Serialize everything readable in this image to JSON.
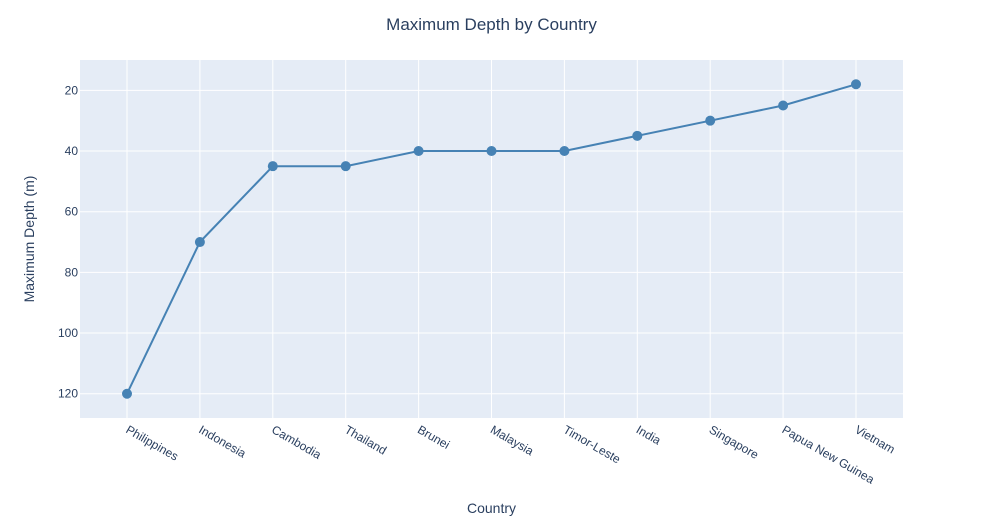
{
  "chart_data": {
    "type": "line",
    "title": "Maximum Depth by Country",
    "xlabel": "Country",
    "ylabel": "Maximum Depth (m)",
    "categories": [
      "Philippines",
      "Indonesia",
      "Cambodia",
      "Thailand",
      "Brunei",
      "Malaysia",
      "Timor-Leste",
      "India",
      "Singapore",
      "Papua New Guinea",
      "Vietnam"
    ],
    "values": [
      120,
      70,
      45,
      45,
      40,
      40,
      40,
      35,
      30,
      25,
      18
    ],
    "y_reversed": true,
    "ylim": [
      128,
      10
    ],
    "yticks": [
      20,
      40,
      60,
      80,
      100,
      120
    ],
    "grid": true,
    "legend": "none",
    "colors": {
      "line": "#4682b4",
      "plot_background": "#e5ecf6",
      "grid": "#ffffff",
      "text": "#2a3f5f"
    }
  }
}
